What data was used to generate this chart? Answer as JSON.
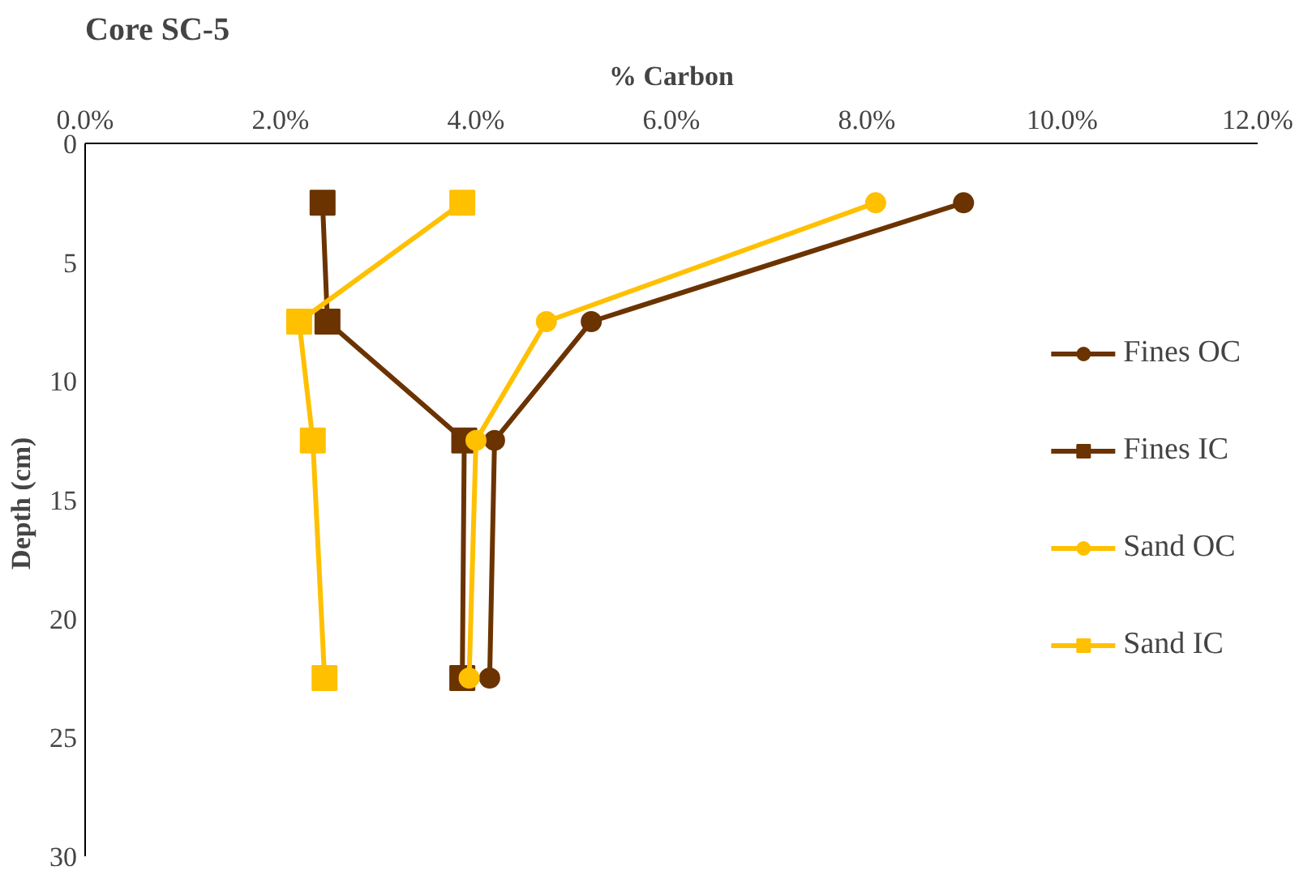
{
  "chart_data": {
    "type": "line",
    "title": "Core SC-5",
    "xlabel": "% Carbon",
    "ylabel": "Depth  (cm)",
    "xlim": [
      0,
      12
    ],
    "xticks": [
      {
        "value": 0,
        "label": "0.0%"
      },
      {
        "value": 2,
        "label": "2.0%"
      },
      {
        "value": 4,
        "label": "4.0%"
      },
      {
        "value": 6,
        "label": "6.0%"
      },
      {
        "value": 8,
        "label": "8.0%"
      },
      {
        "value": 10,
        "label": "10.0%"
      },
      {
        "value": 12,
        "label": "12.0%"
      }
    ],
    "ylim": [
      30,
      0
    ],
    "yticks": [
      0,
      5,
      10,
      15,
      20,
      25,
      30
    ],
    "grid": false,
    "legend": "right",
    "line_style": "solid",
    "series": [
      {
        "name": "Fines OC",
        "color": "#6b3300",
        "marker": "circle",
        "x": [
          8.99,
          5.18,
          4.19,
          4.14
        ],
        "values": [
          2.5,
          7.5,
          12.5,
          22.5
        ]
      },
      {
        "name": "Fines IC",
        "color": "#6b3300",
        "marker": "square",
        "x": [
          2.43,
          2.48,
          3.88,
          3.86
        ],
        "values": [
          2.5,
          7.5,
          12.5,
          22.5
        ]
      },
      {
        "name": "Sand OC",
        "color": "#ffc000",
        "marker": "circle",
        "x": [
          8.09,
          4.72,
          4.0,
          3.93
        ],
        "values": [
          2.5,
          7.5,
          12.5,
          22.5
        ]
      },
      {
        "name": "Sand IC",
        "color": "#ffc000",
        "marker": "square",
        "x": [
          3.86,
          2.19,
          2.33,
          2.45
        ],
        "values": [
          2.5,
          7.5,
          12.5,
          22.5
        ]
      }
    ]
  }
}
